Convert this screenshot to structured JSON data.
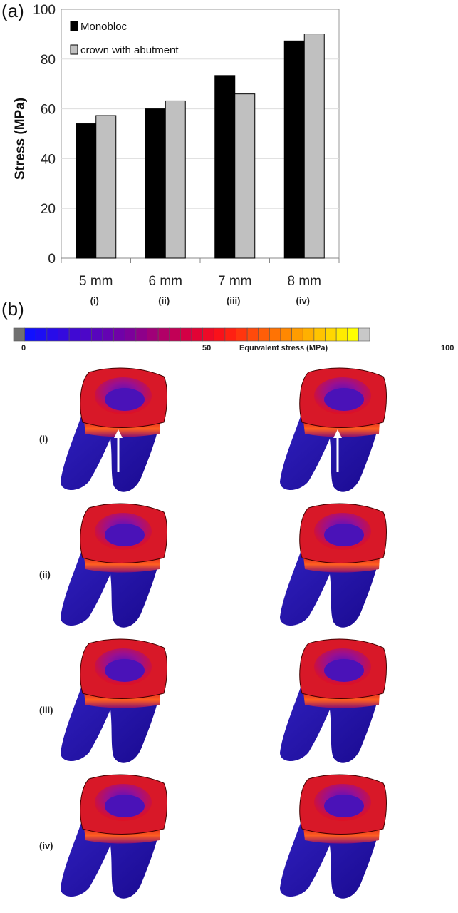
{
  "panel_a_label": "(a)",
  "panel_b_label": "(b)",
  "chart_data": {
    "type": "bar",
    "title": "",
    "xlabel": "",
    "ylabel": "Stress (MPa)",
    "ylim": [
      0,
      100
    ],
    "yticks": [
      "0",
      "20",
      "40",
      "60",
      "80",
      "100"
    ],
    "categories": [
      "5 mm",
      "6 mm",
      "7 mm",
      "8 mm"
    ],
    "category_sublabels": [
      "(i)",
      "(ii)",
      "(iii)",
      "(iv)"
    ],
    "legend_position": "top-left",
    "grid": true,
    "series": [
      {
        "name": "Monobloc",
        "color": "#000000",
        "values": [
          54,
          60,
          73.4,
          87.3
        ]
      },
      {
        "name": "crown with abutment",
        "color": "#c0c0c0",
        "values": [
          57.3,
          63.2,
          66,
          90.1
        ]
      }
    ]
  },
  "colorbar": {
    "min_label": "0",
    "mid_label": "50",
    "max_label": "100",
    "title": "Equivalent stress (MPa)"
  },
  "rows": [
    "(i)",
    "(ii)",
    "(iii)",
    "(iv)"
  ]
}
